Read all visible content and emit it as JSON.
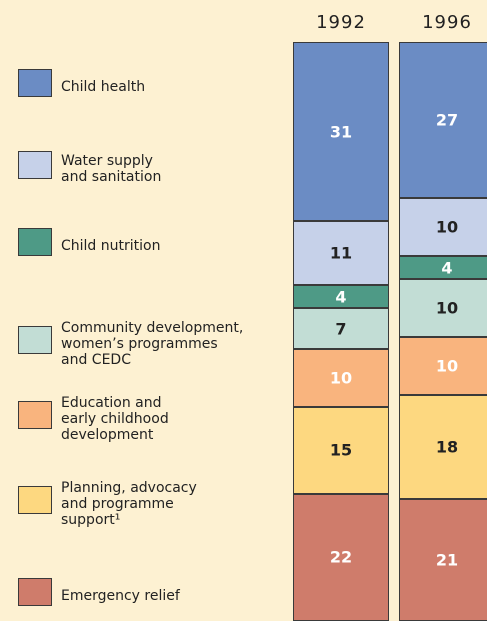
{
  "chart_data": {
    "type": "stacked-bar",
    "categories": [
      "1992",
      "1996"
    ],
    "ylim": [
      0,
      100
    ],
    "series": [
      {
        "name": "Child health",
        "color": "#6b8cc4",
        "label_color": "#ffffff",
        "values": [
          31,
          27
        ]
      },
      {
        "name": "Water supply\nand sanitation",
        "color": "#c6d1e9",
        "label_color": "#222222",
        "values": [
          11,
          10
        ]
      },
      {
        "name": "Child nutrition",
        "color": "#4e9a86",
        "label_color": "#ffffff",
        "values": [
          4,
          4
        ]
      },
      {
        "name": "Community development,\nwomen’s programmes\nand CEDC",
        "color": "#c2ddd5",
        "label_color": "#222222",
        "values": [
          7,
          10
        ]
      },
      {
        "name": "Education and\nearly childhood\ndevelopment",
        "color": "#f9b47e",
        "label_color": "#ffffff",
        "values": [
          10,
          10
        ]
      },
      {
        "name": "Planning, advocacy\nand programme\nsupport¹",
        "color": "#fdd880",
        "label_color": "#222222",
        "values": [
          15,
          18
        ]
      },
      {
        "name": "Emergency relief",
        "color": "#cf7c6b",
        "label_color": "#ffffff",
        "values": [
          22,
          21
        ]
      }
    ]
  }
}
